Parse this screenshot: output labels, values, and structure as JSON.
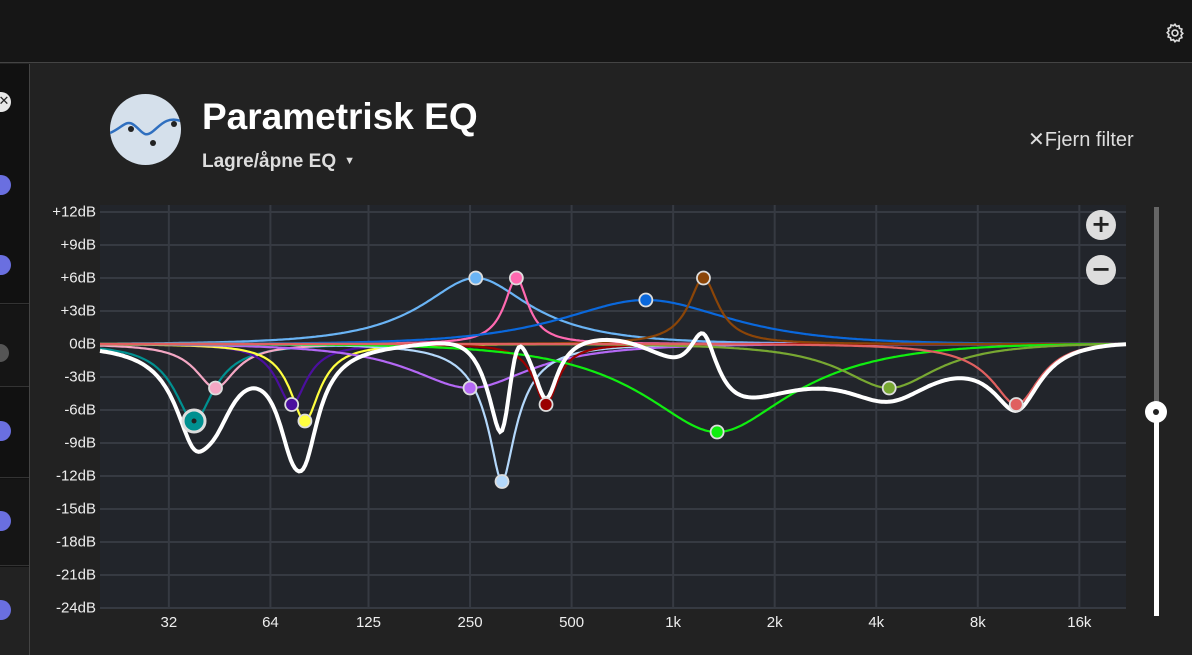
{
  "header": {
    "title": "Parametrisk EQ",
    "preset_menu": "Lagre/åpne EQ",
    "remove_filter": "Fjern filter",
    "settings_icon": "gear-icon",
    "logo_icon": "eq-curve-icon"
  },
  "zoom": {
    "in_label": "+",
    "out_label": "−"
  },
  "gain_slider": {
    "value_fraction": 0.5
  },
  "sidebar": {
    "items": [
      {
        "icon": "close-icon"
      },
      {
        "icon": "toggle-on-icon",
        "color": "#6a6fe0"
      },
      {
        "icon": "toggle-on-icon",
        "color": "#6a6fe0"
      },
      {
        "icon": "toggle-off-icon",
        "color": "#555555"
      },
      {
        "icon": "toggle-on-icon",
        "color": "#6a6fe0"
      },
      {
        "icon": "toggle-on-icon",
        "color": "#6a6fe0"
      },
      {
        "icon": "toggle-on-icon",
        "color": "#6a6fe0"
      }
    ]
  },
  "chart_data": {
    "type": "line",
    "xscale": "log",
    "xlim": [
      20,
      22000
    ],
    "ylim": [
      -24,
      12
    ],
    "grid": true,
    "y_ticks": [
      "+12dB",
      "+9dB",
      "+6dB",
      "+3dB",
      "0dB",
      "-3dB",
      "-6dB",
      "-9dB",
      "-12dB",
      "-15dB",
      "-18dB",
      "-21dB",
      "-24dB"
    ],
    "y_tick_values": [
      12,
      9,
      6,
      3,
      0,
      -3,
      -6,
      -9,
      -12,
      -15,
      -18,
      -21,
      -24
    ],
    "x_ticks": [
      "32",
      "64",
      "125",
      "250",
      "500",
      "1k",
      "2k",
      "4k",
      "8k",
      "16k"
    ],
    "x_tick_values": [
      32,
      64,
      125,
      250,
      500,
      1000,
      2000,
      4000,
      8000,
      16000
    ],
    "combined_color": "#ffffff",
    "filters": [
      {
        "freq": 38,
        "gain": -7,
        "q": 3,
        "color": "#009090",
        "selected": true
      },
      {
        "freq": 44,
        "gain": -4,
        "q": 3,
        "color": "#f4a7c4"
      },
      {
        "freq": 74,
        "gain": -5.5,
        "q": 4,
        "color": "#4b0f9e"
      },
      {
        "freq": 81,
        "gain": -7,
        "q": 4,
        "color": "#ffff40"
      },
      {
        "freq": 250,
        "gain": -4,
        "q": 1,
        "color": "#b468f5"
      },
      {
        "freq": 260,
        "gain": 6,
        "q": 1.1,
        "color": "#6ab4f5"
      },
      {
        "freq": 311,
        "gain": -12.5,
        "q": 4,
        "color": "#b4d8fb"
      },
      {
        "freq": 343,
        "gain": 6,
        "q": 5,
        "color": "#ff69b0"
      },
      {
        "freq": 420,
        "gain": -5.5,
        "q": 5,
        "color": "#9a0000"
      },
      {
        "freq": 830,
        "gain": 4,
        "q": 0.7,
        "color": "#0a68dc"
      },
      {
        "freq": 1230,
        "gain": 6,
        "q": 4,
        "color": "#8b4508"
      },
      {
        "freq": 1350,
        "gain": -8,
        "q": 0.8,
        "color": "#10ee10"
      },
      {
        "freq": 4370,
        "gain": -4,
        "q": 1.2,
        "color": "#78a832"
      },
      {
        "freq": 10400,
        "gain": -5.5,
        "q": 1.8,
        "color": "#e06060"
      }
    ]
  }
}
